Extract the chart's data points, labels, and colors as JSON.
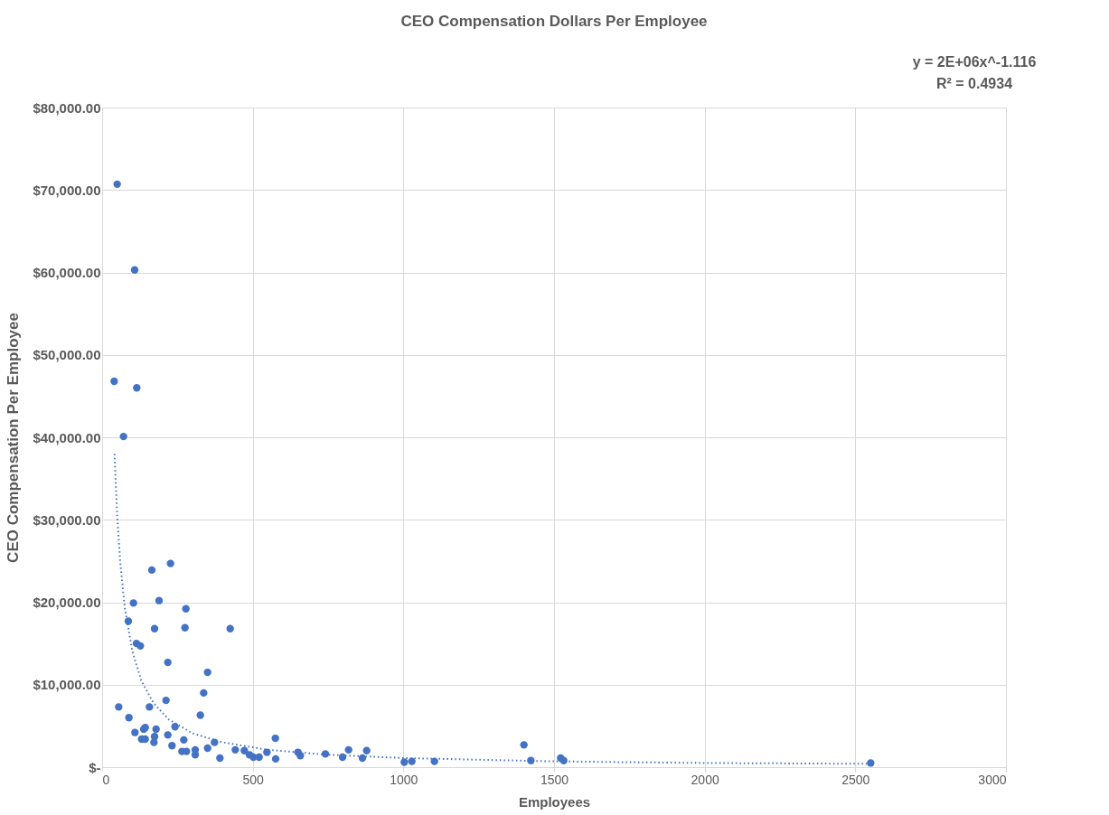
{
  "chart_data": {
    "type": "scatter",
    "title": "CEO Compensation Dollars Per Employee",
    "xlabel": "Employees",
    "ylabel": "CEO Compensation Per Employee",
    "annotations": [
      "y = 2E+06x^-1.116",
      "R² = 0.4934"
    ],
    "xlim": [
      0,
      3000
    ],
    "xticks": [
      0,
      500,
      1000,
      1500,
      2000,
      2500,
      3000
    ],
    "ylim": [
      0,
      80000
    ],
    "yticks": [
      {
        "value": 0,
        "label": "$-"
      },
      {
        "value": 10000,
        "label": "$10,000.00"
      },
      {
        "value": 20000,
        "label": "$20,000.00"
      },
      {
        "value": 30000,
        "label": "$30,000.00"
      },
      {
        "value": 40000,
        "label": "$40,000.00"
      },
      {
        "value": 50000,
        "label": "$50,000.00"
      },
      {
        "value": 60000,
        "label": "$60,000.00"
      },
      {
        "value": 70000,
        "label": "$70,000.00"
      },
      {
        "value": 80000,
        "label": "$80,000.00"
      }
    ],
    "grid": true,
    "legend": false,
    "marker": "circle",
    "series": [
      {
        "color": "#4472c4",
        "x": [
          50,
          108,
          40,
          115,
          71,
          165,
          227,
          104,
          189,
          278,
          87,
          174,
          275,
          425,
          114,
          127,
          218,
          350,
          337,
          212,
          55,
          157,
          326,
          89,
          242,
          109,
          138,
          143,
          179,
          131,
          143,
          174,
          172,
          218,
          232,
          271,
          265,
          280,
          309,
          309,
          350,
          373,
          391,
          442,
          472,
          489,
          502,
          521,
          547,
          575,
          576,
          650,
          658,
          741,
          798,
          818,
          864,
          878,
          1003,
          1028,
          1103,
          1400,
          1423,
          1522,
          1532,
          2551
        ],
        "values": [
          70700,
          60300,
          46800,
          46000,
          40100,
          23900,
          24700,
          19900,
          20200,
          19200,
          17700,
          16800,
          16900,
          16800,
          15000,
          14700,
          12700,
          11500,
          9000,
          8100,
          7300,
          7300,
          6300,
          6000,
          4900,
          4200,
          4600,
          4800,
          4600,
          3400,
          3400,
          3700,
          3000,
          3900,
          2600,
          3300,
          1900,
          1900,
          2100,
          1500,
          2300,
          3000,
          1100,
          2100,
          2000,
          1500,
          1200,
          1200,
          1800,
          3500,
          1000,
          1800,
          1400,
          1600,
          1200,
          2100,
          1100,
          2000,
          600,
          700,
          700,
          2700,
          800,
          1100,
          800,
          500
        ]
      },
      {
        "type": "line",
        "marker": "none",
        "line_style": "dotted",
        "color": "#4472c4",
        "x": [
          41,
          50,
          60,
          75,
          100,
          130,
          170,
          220,
          300,
          400,
          550,
          750,
          1000,
          1500,
          2000,
          2550
        ],
        "values": [
          38000,
          30500,
          24900,
          19400,
          14100,
          10500,
          7800,
          5800,
          4100,
          3000,
          2100,
          1500,
          1100,
          700,
          500,
          400
        ]
      }
    ]
  }
}
